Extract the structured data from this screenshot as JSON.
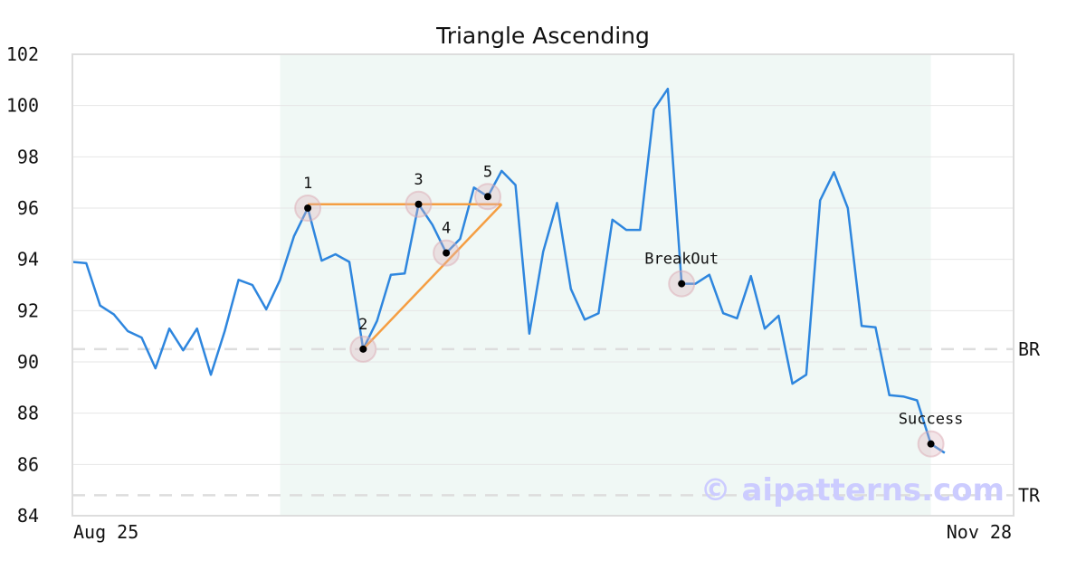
{
  "chart_data": {
    "type": "line",
    "title": "Triangle Ascending",
    "xlabel": "",
    "ylabel": "",
    "ylim": [
      84,
      102
    ],
    "yticks": [
      84,
      86,
      88,
      90,
      92,
      94,
      96,
      98,
      100,
      102
    ],
    "x_start_label": "Aug 25",
    "x_end_label": "Nov 28",
    "grid": true,
    "series": [
      {
        "color": "#2e86de",
        "values": [
          93.9,
          93.85,
          92.2,
          91.85,
          91.2,
          90.95,
          89.75,
          91.3,
          90.45,
          91.3,
          89.5,
          91.2,
          93.2,
          93.0,
          92.05,
          93.2,
          94.9,
          96.0,
          93.95,
          94.2,
          93.9,
          90.5,
          91.6,
          93.4,
          93.45,
          96.15,
          95.35,
          94.25,
          94.8,
          96.8,
          96.45,
          97.45,
          96.9,
          91.1,
          94.3,
          96.2,
          92.85,
          91.65,
          91.9,
          95.55,
          95.15,
          95.15,
          99.85,
          100.65,
          93.05,
          93.05,
          93.4,
          91.9,
          91.7,
          93.35,
          91.3,
          91.8,
          89.15,
          89.5,
          96.3,
          97.4,
          96.0,
          91.4,
          91.35,
          88.7,
          88.65,
          88.5,
          86.8,
          86.45
        ]
      }
    ],
    "pattern_region": {
      "start_index": 15,
      "end_index": 62,
      "color": "#f0f8f5"
    },
    "pattern_lines": [
      {
        "from": [
          17,
          96.15
        ],
        "to": [
          31,
          96.15
        ],
        "color": "#f59e42"
      },
      {
        "from": [
          21,
          90.5
        ],
        "to": [
          31,
          96.15
        ],
        "color": "#f59e42"
      }
    ],
    "markers": [
      {
        "label": "1",
        "index": 17,
        "value": 96.0
      },
      {
        "label": "2",
        "index": 21,
        "value": 90.5
      },
      {
        "label": "3",
        "index": 25,
        "value": 96.15
      },
      {
        "label": "4",
        "index": 27,
        "value": 94.25
      },
      {
        "label": "5",
        "index": 30,
        "value": 96.45
      },
      {
        "label": "BreakOut",
        "index": 44,
        "value": 93.05
      },
      {
        "label": "Success",
        "index": 62,
        "value": 86.8
      }
    ],
    "reference_lines": [
      {
        "label": "BR",
        "value": 90.5
      },
      {
        "label": "TR",
        "value": 84.8
      }
    ],
    "watermark": "© aipatterns.com"
  }
}
